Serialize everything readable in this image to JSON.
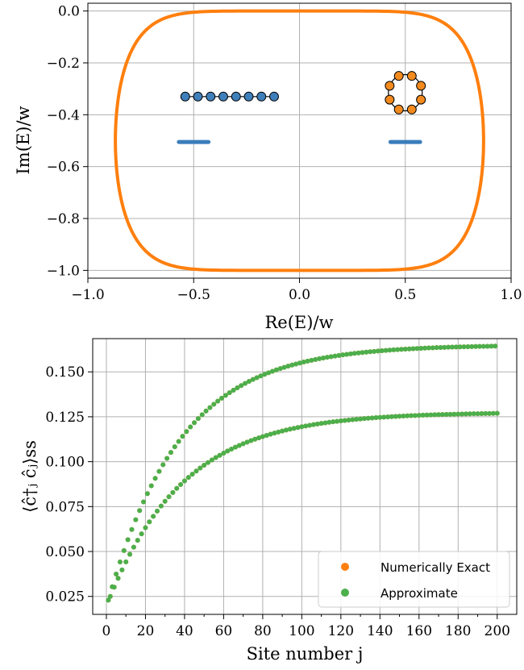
{
  "chart_data": [
    {
      "type": "scatter",
      "title": "",
      "xlabel": "Re(E)/w",
      "ylabel": "Im(E)/w",
      "xlim": [
        -1.0,
        1.0
      ],
      "ylim": [
        -1.03,
        0.03
      ],
      "x_ticks": [
        "−1.0",
        "−0.5",
        "0.0",
        "0.5",
        "1.0"
      ],
      "y_ticks": [
        "0.0",
        "−0.2",
        "−0.4",
        "−0.6",
        "−0.8",
        "−1.0"
      ],
      "grid": true,
      "colors": {
        "curve": "#ff7f0e",
        "spectrum": "#3a7dbb",
        "chain_fill": "#3f7fba",
        "ring_fill": "#f28a1e"
      },
      "series": [
        {
          "kind": "stadium-curve",
          "center_x": 0.0,
          "center_y": -0.5,
          "radius_y": 0.5,
          "half_width": 0.87
        },
        {
          "kind": "segment",
          "x_start": -0.57,
          "x_end": -0.43,
          "y": -0.505
        },
        {
          "kind": "segment",
          "x_start": 0.43,
          "x_end": 0.57,
          "y": -0.505
        },
        {
          "kind": "open-chain",
          "nodes": 8,
          "x_start": -0.54,
          "x_end": -0.12,
          "y": -0.33
        },
        {
          "kind": "ring",
          "nodes": 8,
          "center_x": 0.5,
          "center_y": -0.315,
          "radius_x": 0.08,
          "radius_y": 0.07
        }
      ]
    },
    {
      "type": "scatter",
      "title": "",
      "xlabel": "Site number j",
      "ylabel": "⟨ĉ†ⱼ ĉⱼ⟩ss",
      "xlim": [
        -7,
        210
      ],
      "ylim": [
        0.015,
        0.1685
      ],
      "x_ticks": [
        "0",
        "20",
        "40",
        "60",
        "80",
        "100",
        "120",
        "140",
        "160",
        "180",
        "200"
      ],
      "y_ticks": [
        "0.025",
        "0.050",
        "0.075",
        "0.100",
        "0.125",
        "0.150"
      ],
      "grid": true,
      "legend": {
        "placement": "lower right",
        "entries": [
          "Numerically Exact",
          "Approximate"
        ]
      },
      "colors": {
        "exact": "#ff7f0e",
        "approx": "#4caf4c"
      },
      "series": [
        {
          "name": "Numerically Exact",
          "x_range": [
            1,
            200,
            2
          ],
          "a": 0.165,
          "b": 0.146,
          "tau": 37
        },
        {
          "name": "Numerically Exact",
          "x_range": [
            2,
            200,
            2
          ],
          "a": 0.1275,
          "b": 0.108,
          "tau": 38.5
        },
        {
          "name": "Approximate",
          "x_range": [
            1,
            200,
            2
          ],
          "a": 0.165,
          "b": 0.146,
          "tau": 37
        },
        {
          "name": "Approximate",
          "x_range": [
            2,
            200,
            2
          ],
          "a": 0.1275,
          "b": 0.108,
          "tau": 38.5
        }
      ]
    }
  ]
}
